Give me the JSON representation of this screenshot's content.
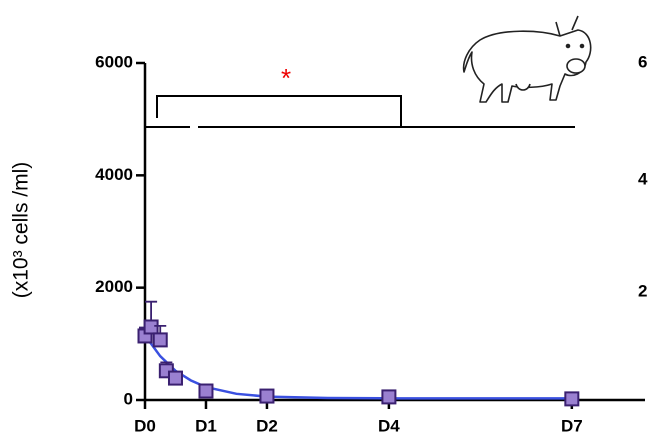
{
  "chart_data": {
    "type": "scatter",
    "y_label": "(x10³ cells /ml)",
    "annotation": "*",
    "xlim": [
      0,
      8.2
    ],
    "xticks": [
      {
        "value": 0,
        "label": "D0"
      },
      {
        "value": 1,
        "label": "D1"
      },
      {
        "value": 2,
        "label": "D2"
      },
      {
        "value": 4,
        "label": "D4"
      },
      {
        "value": 7,
        "label": "D7"
      }
    ],
    "ylim": [
      0,
      6000
    ],
    "yticks": [
      0,
      2000,
      4000,
      6000
    ],
    "series": [
      {
        "color": "#9a80d0",
        "x": [
          0,
          0.1,
          0.25,
          0.35,
          0.5,
          1,
          2,
          4,
          7
        ],
        "values": [
          1140,
          1300,
          1070,
          520,
          390,
          160,
          70,
          55,
          20
        ],
        "errors": [
          150,
          450,
          250,
          150,
          80,
          40,
          20,
          10,
          10
        ]
      },
      {
        "type": "line",
        "color": "#3a50e0",
        "x": [
          0,
          0.25,
          0.5,
          0.75,
          1,
          1.5,
          2,
          3,
          4,
          5,
          6,
          7
        ],
        "values": [
          1150,
          780,
          520,
          350,
          230,
          110,
          60,
          35,
          30,
          30,
          30,
          30
        ]
      }
    ]
  },
  "clipped_text": [
    "6",
    "4",
    "2"
  ]
}
